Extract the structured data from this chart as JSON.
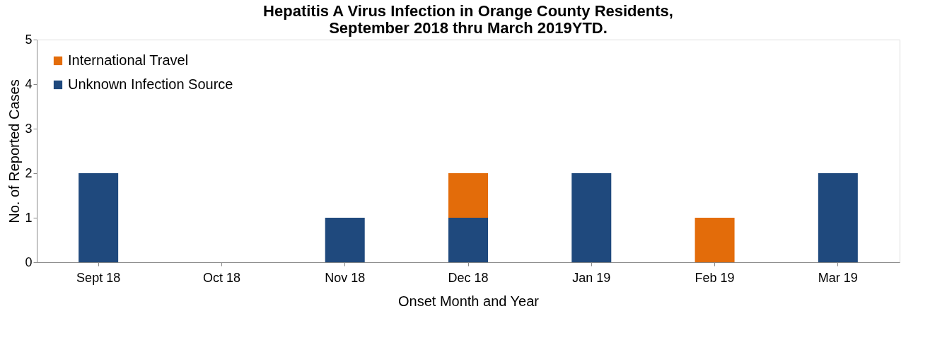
{
  "chart_data": {
    "type": "bar",
    "stacked": true,
    "title": [
      "Hepatitis A Virus Infection in Orange County Residents,",
      "September 2018 thru March 2019YTD."
    ],
    "xlabel": "Onset Month and Year",
    "ylabel": "No. of Reported Cases",
    "categories": [
      "Sept 18",
      "Oct 18",
      "Nov 18",
      "Dec 18",
      "Jan 19",
      "Feb 19",
      "Mar 19"
    ],
    "series": [
      {
        "name": "Unknown Infection Source",
        "color": "#1f497d",
        "values": [
          2,
          0,
          1,
          1,
          2,
          0,
          2
        ]
      },
      {
        "name": "International Travel",
        "color": "#e36c0a",
        "values": [
          0,
          0,
          0,
          1,
          0,
          1,
          0
        ]
      }
    ],
    "ylim": [
      0,
      5
    ],
    "yticks": [
      0,
      1,
      2,
      3,
      4,
      5
    ],
    "grid": false,
    "legend": "top left"
  }
}
